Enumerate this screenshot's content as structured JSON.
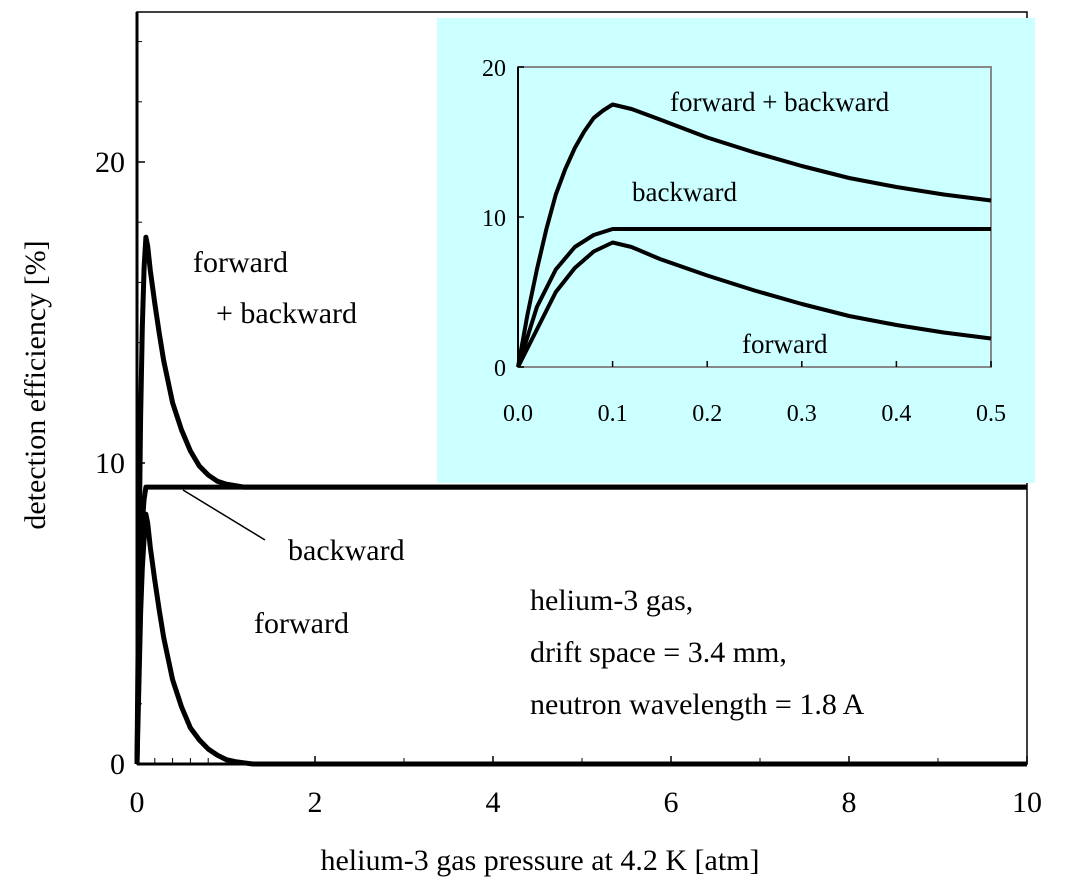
{
  "chart_data": [
    {
      "type": "line",
      "xlabel": "helium-3 gas pressure at 4.2 K [atm]",
      "ylabel": "detection efficiency [%]",
      "xlim": [
        0,
        10
      ],
      "ylim": [
        0,
        20
      ],
      "xticks": [
        0,
        2,
        4,
        6,
        8,
        10
      ],
      "yticks": [
        0,
        10,
        20
      ],
      "grid": false,
      "series": [
        {
          "name": "forward + backward",
          "x": [
            0,
            0.02,
            0.04,
            0.06,
            0.08,
            0.1,
            0.12,
            0.15,
            0.2,
            0.25,
            0.3,
            0.4,
            0.5,
            0.6,
            0.7,
            0.8,
            0.9,
            1.0,
            1.2,
            1.5,
            2,
            3,
            4,
            5,
            6,
            7,
            8,
            9,
            10
          ],
          "y": [
            0,
            6.5,
            11.5,
            14.5,
            16.5,
            17.5,
            17.2,
            16.4,
            15.3,
            14.3,
            13.4,
            12.0,
            11.1,
            10.4,
            9.9,
            9.6,
            9.4,
            9.3,
            9.2,
            9.2,
            9.2,
            9.2,
            9.2,
            9.2,
            9.2,
            9.2,
            9.2,
            9.2,
            9.2
          ]
        },
        {
          "name": "backward",
          "x": [
            0,
            0.02,
            0.04,
            0.06,
            0.08,
            0.1,
            10
          ],
          "y": [
            0,
            4.0,
            6.5,
            8.0,
            8.8,
            9.2,
            9.2
          ]
        },
        {
          "name": "forward",
          "x": [
            0,
            0.02,
            0.04,
            0.06,
            0.08,
            0.1,
            0.12,
            0.15,
            0.2,
            0.25,
            0.3,
            0.4,
            0.5,
            0.6,
            0.7,
            0.8,
            0.9,
            1.0,
            1.1,
            1.2,
            1.3,
            1.5,
            2,
            10
          ],
          "y": [
            0,
            2.5,
            5.0,
            6.5,
            7.5,
            8.3,
            8.0,
            7.2,
            6.1,
            5.1,
            4.2,
            2.8,
            1.9,
            1.2,
            0.8,
            0.5,
            0.3,
            0.15,
            0.08,
            0.04,
            0.0,
            0.0,
            0.0,
            0.0
          ]
        }
      ],
      "annotations": {
        "forward_backward_line1": "forward",
        "forward_backward_line2": "+ backward",
        "backward": "backward",
        "forward": "forward",
        "info_line1": "helium-3 gas,",
        "info_line2": "drift space = 3.4 mm,",
        "info_line3": "neutron wavelength = 1.8 A"
      }
    },
    {
      "type": "line",
      "role": "inset",
      "xlim": [
        0,
        0.5
      ],
      "ylim": [
        0,
        20
      ],
      "xticks": [
        0.0,
        0.1,
        0.2,
        0.3,
        0.4,
        0.5
      ],
      "xtick_labels": [
        "0.0",
        "0.1",
        "0.2",
        "0.3",
        "0.4",
        "0.5"
      ],
      "yticks": [
        0,
        10,
        20
      ],
      "background": "#ccffff",
      "series": [
        {
          "name": "forward + backward",
          "x": [
            0,
            0.01,
            0.02,
            0.03,
            0.04,
            0.05,
            0.06,
            0.07,
            0.08,
            0.09,
            0.1,
            0.12,
            0.15,
            0.2,
            0.25,
            0.3,
            0.35,
            0.4,
            0.45,
            0.5
          ],
          "y": [
            0,
            3.5,
            6.5,
            9.2,
            11.5,
            13.2,
            14.6,
            15.7,
            16.6,
            17.1,
            17.5,
            17.2,
            16.5,
            15.3,
            14.3,
            13.4,
            12.6,
            12.0,
            11.5,
            11.1
          ]
        },
        {
          "name": "backward",
          "x": [
            0,
            0.02,
            0.04,
            0.06,
            0.08,
            0.1,
            0.5
          ],
          "y": [
            0,
            4.0,
            6.5,
            8.0,
            8.8,
            9.2,
            9.2
          ]
        },
        {
          "name": "forward",
          "x": [
            0,
            0.02,
            0.04,
            0.06,
            0.08,
            0.1,
            0.12,
            0.15,
            0.2,
            0.25,
            0.3,
            0.35,
            0.4,
            0.45,
            0.5
          ],
          "y": [
            0,
            2.5,
            5.0,
            6.6,
            7.7,
            8.3,
            8.0,
            7.2,
            6.1,
            5.1,
            4.2,
            3.4,
            2.8,
            2.3,
            1.9
          ]
        }
      ],
      "annotations": {
        "forward_backward": "forward + backward",
        "backward": "backward",
        "forward": "forward"
      }
    }
  ]
}
